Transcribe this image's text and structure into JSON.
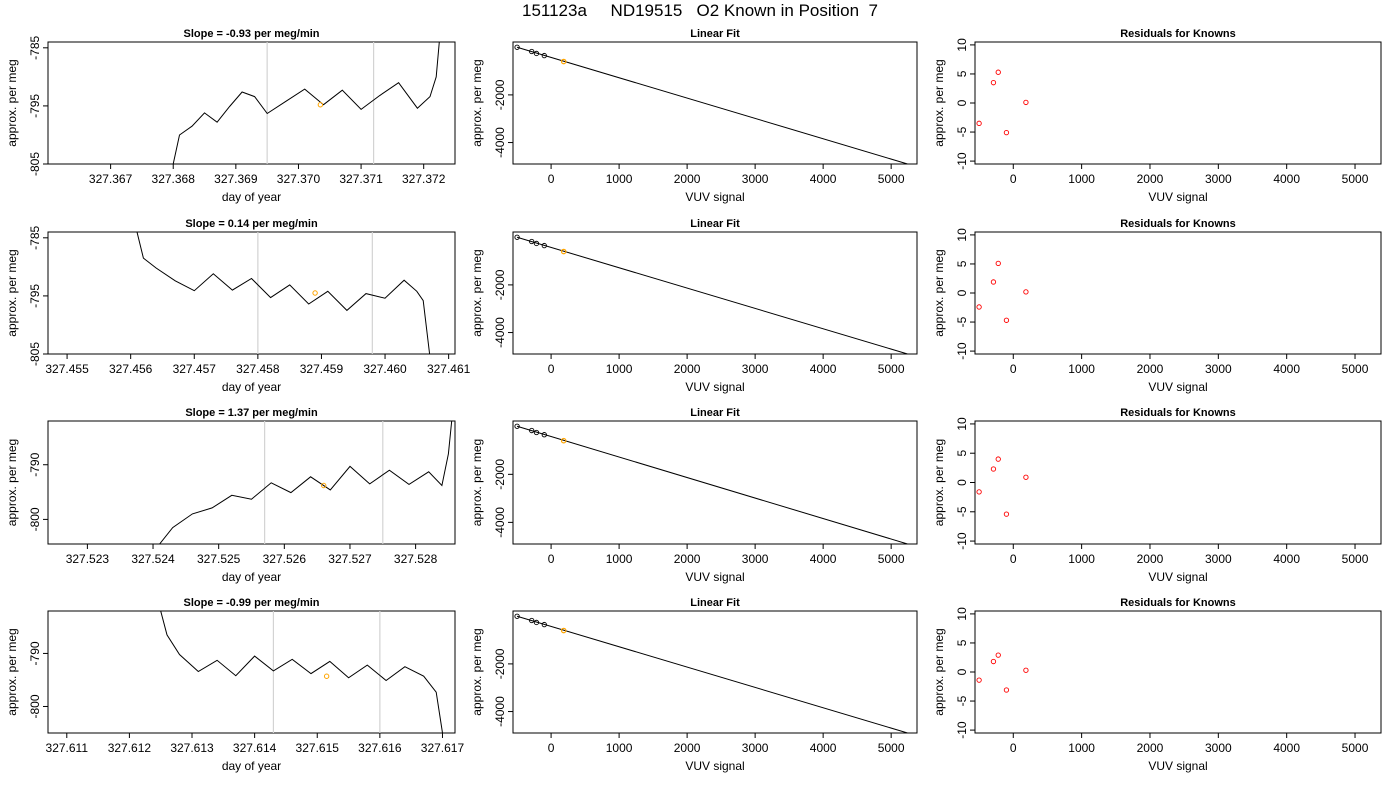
{
  "figure_title": "151123a     ND19515   O2 Known in Position  7",
  "colors": {
    "trace": "#000000",
    "marker_line": "#d3d3d3",
    "highlight_point": "#ffa500",
    "residual_point": "#ff0000",
    "axis": "#000000"
  },
  "chart_data": [
    {
      "type": "line",
      "title": "Slope =  -0.93  per meg/min",
      "xlabel": "day of year",
      "ylabel": "approx. per meg",
      "xlim": [
        327.366,
        327.3725
      ],
      "ylim": [
        -805,
        -784
      ],
      "xticks": [
        "327.367",
        "327.368",
        "327.369",
        "327.370",
        "327.371",
        "327.372"
      ],
      "yticks": [
        "-785",
        "-795",
        "-805"
      ],
      "vlines": [
        327.3695,
        327.3712
      ],
      "highlight": {
        "x": 327.37035,
        "y": -794.8
      },
      "series": [
        {
          "values": [
            [
              327.368,
              -805
            ],
            [
              327.3681,
              -800
            ],
            [
              327.3683,
              -798.5
            ],
            [
              327.3685,
              -796.2
            ],
            [
              327.3687,
              -797.8
            ],
            [
              327.3689,
              -795.1
            ],
            [
              327.3691,
              -792.6
            ],
            [
              327.3693,
              -793.4
            ],
            [
              327.3695,
              -796.3
            ],
            [
              327.3698,
              -794.2
            ],
            [
              327.3701,
              -792.1
            ],
            [
              327.3704,
              -794.8
            ],
            [
              327.3707,
              -792.3
            ],
            [
              327.371,
              -795.6
            ],
            [
              327.3713,
              -793.2
            ],
            [
              327.3716,
              -791.0
            ],
            [
              327.3719,
              -795.4
            ],
            [
              327.3721,
              -793.4
            ],
            [
              327.3722,
              -790.0
            ],
            [
              327.37225,
              -784
            ]
          ]
        }
      ]
    },
    {
      "type": "scatter",
      "title": "Linear Fit",
      "xlabel": "VUV signal",
      "ylabel": "approx. per meg",
      "xlim": [
        -560,
        5380
      ],
      "ylim": [
        -4900,
        220
      ],
      "xticks": [
        "0",
        "1000",
        "2000",
        "3000",
        "4000",
        "5000"
      ],
      "yticks": [
        "-2000",
        "-4000"
      ],
      "fit_line": [
        [
          -500,
          0
        ],
        [
          5300,
          -4950
        ]
      ],
      "points": [
        [
          -500,
          0
        ],
        [
          -285,
          -178
        ],
        [
          -215,
          -260
        ],
        [
          -100,
          -350
        ]
      ],
      "highlight": {
        "x": 185,
        "y": -600
      }
    },
    {
      "type": "scatter",
      "title": "Residuals for Knowns",
      "xlabel": "VUV signal",
      "ylabel": "approx. per meg",
      "xlim": [
        -560,
        5380
      ],
      "ylim": [
        -10.5,
        10.5
      ],
      "xticks": [
        "0",
        "1000",
        "2000",
        "3000",
        "4000",
        "5000"
      ],
      "yticks": [
        "10",
        "5",
        "0",
        "-5",
        "-10"
      ],
      "points": [
        [
          -500,
          -3.5
        ],
        [
          -290,
          3.5
        ],
        [
          -220,
          5.3
        ],
        [
          -100,
          -5.1
        ],
        [
          185,
          0.1
        ]
      ]
    },
    {
      "type": "line",
      "title": "Slope =  0.14  per meg/min",
      "xlabel": "day of year",
      "ylabel": "approx. per meg",
      "xlim": [
        327.4547,
        327.4611
      ],
      "ylim": [
        -805,
        -784
      ],
      "xticks": [
        "327.455",
        "327.456",
        "327.457",
        "327.458",
        "327.459",
        "327.460",
        "327.461"
      ],
      "yticks": [
        "-785",
        "-795",
        "-805"
      ],
      "vlines": [
        327.458,
        327.4598
      ],
      "highlight": {
        "x": 327.4589,
        "y": -794.5
      },
      "series": [
        {
          "values": [
            [
              327.4561,
              -784
            ],
            [
              327.4562,
              -788.5
            ],
            [
              327.4564,
              -790.2
            ],
            [
              327.4567,
              -792.4
            ],
            [
              327.457,
              -794.1
            ],
            [
              327.4573,
              -791.2
            ],
            [
              327.4576,
              -794.0
            ],
            [
              327.4579,
              -792.0
            ],
            [
              327.4582,
              -795.3
            ],
            [
              327.4585,
              -793.1
            ],
            [
              327.4588,
              -796.4
            ],
            [
              327.4591,
              -794.2
            ],
            [
              327.4594,
              -797.5
            ],
            [
              327.4597,
              -794.6
            ],
            [
              327.46,
              -795.4
            ],
            [
              327.4603,
              -792.3
            ],
            [
              327.4605,
              -794.2
            ],
            [
              327.4606,
              -795.8
            ],
            [
              327.4607,
              -805
            ]
          ]
        }
      ]
    },
    {
      "type": "scatter",
      "title": "Linear Fit",
      "xlabel": "VUV signal",
      "ylabel": "approx. per meg",
      "xlim": [
        -560,
        5380
      ],
      "ylim": [
        -4900,
        220
      ],
      "xticks": [
        "0",
        "1000",
        "2000",
        "3000",
        "4000",
        "5000"
      ],
      "yticks": [
        "-2000",
        "-4000"
      ],
      "fit_line": [
        [
          -500,
          0
        ],
        [
          5300,
          -4950
        ]
      ],
      "points": [
        [
          -500,
          0
        ],
        [
          -285,
          -178
        ],
        [
          -215,
          -260
        ],
        [
          -100,
          -350
        ]
      ],
      "highlight": {
        "x": 185,
        "y": -600
      }
    },
    {
      "type": "scatter",
      "title": "Residuals for Knowns",
      "xlabel": "VUV signal",
      "ylabel": "approx. per meg",
      "xlim": [
        -560,
        5380
      ],
      "ylim": [
        -10.5,
        10.5
      ],
      "xticks": [
        "0",
        "1000",
        "2000",
        "3000",
        "4000",
        "5000"
      ],
      "yticks": [
        "10",
        "5",
        "0",
        "-5",
        "-10"
      ],
      "points": [
        [
          -500,
          -2.4
        ],
        [
          -290,
          1.9
        ],
        [
          -220,
          5.1
        ],
        [
          -100,
          -4.7
        ],
        [
          185,
          0.2
        ]
      ]
    },
    {
      "type": "line",
      "title": "Slope =  1.37  per meg/min",
      "xlabel": "day of year",
      "ylabel": "approx. per meg",
      "xlim": [
        327.5224,
        327.5286
      ],
      "ylim": [
        -804.5,
        -782
      ],
      "xticks": [
        "327.523",
        "327.524",
        "327.525",
        "327.526",
        "327.527",
        "327.528"
      ],
      "yticks": [
        "-790",
        "-800"
      ],
      "vlines": [
        327.5257,
        327.5275
      ],
      "highlight": {
        "x": 327.5266,
        "y": -793.8
      },
      "series": [
        {
          "values": [
            [
              327.5241,
              -804.5
            ],
            [
              327.5243,
              -801.5
            ],
            [
              327.5246,
              -799.0
            ],
            [
              327.5249,
              -797.9
            ],
            [
              327.5252,
              -795.6
            ],
            [
              327.5255,
              -796.3
            ],
            [
              327.5258,
              -793.3
            ],
            [
              327.5261,
              -795.1
            ],
            [
              327.5264,
              -792.2
            ],
            [
              327.5267,
              -794.6
            ],
            [
              327.527,
              -790.3
            ],
            [
              327.5273,
              -793.5
            ],
            [
              327.5276,
              -791.0
            ],
            [
              327.5279,
              -793.6
            ],
            [
              327.5282,
              -791.3
            ],
            [
              327.5284,
              -793.8
            ],
            [
              327.5285,
              -788.0
            ],
            [
              327.52855,
              -782
            ]
          ]
        }
      ]
    },
    {
      "type": "scatter",
      "title": "Linear Fit",
      "xlabel": "VUV signal",
      "ylabel": "approx. per meg",
      "xlim": [
        -560,
        5380
      ],
      "ylim": [
        -4900,
        220
      ],
      "xticks": [
        "0",
        "1000",
        "2000",
        "3000",
        "4000",
        "5000"
      ],
      "yticks": [
        "-2000",
        "-4000"
      ],
      "fit_line": [
        [
          -500,
          0
        ],
        [
          5300,
          -4950
        ]
      ],
      "points": [
        [
          -500,
          0
        ],
        [
          -285,
          -178
        ],
        [
          -215,
          -260
        ],
        [
          -100,
          -350
        ]
      ],
      "highlight": {
        "x": 185,
        "y": -600
      }
    },
    {
      "type": "scatter",
      "title": "Residuals for Knowns",
      "xlabel": "VUV signal",
      "ylabel": "approx. per meg",
      "xlim": [
        -560,
        5380
      ],
      "ylim": [
        -10.5,
        10.5
      ],
      "xticks": [
        "0",
        "1000",
        "2000",
        "3000",
        "4000",
        "5000"
      ],
      "yticks": [
        "10",
        "5",
        "0",
        "-5",
        "-10"
      ],
      "points": [
        [
          -500,
          -1.6
        ],
        [
          -290,
          2.3
        ],
        [
          -220,
          4.0
        ],
        [
          -100,
          -5.4
        ],
        [
          185,
          0.9
        ]
      ]
    },
    {
      "type": "line",
      "title": "Slope =  -0.99  per meg/min",
      "xlabel": "day of year",
      "ylabel": "approx. per meg",
      "xlim": [
        327.6107,
        327.6172
      ],
      "ylim": [
        -805,
        -782
      ],
      "xticks": [
        "327.611",
        "327.612",
        "327.613",
        "327.614",
        "327.615",
        "327.616",
        "327.617"
      ],
      "yticks": [
        "-790",
        "-800"
      ],
      "vlines": [
        327.6143,
        327.616
      ],
      "highlight": {
        "x": 327.61515,
        "y": -794.3
      },
      "series": [
        {
          "values": [
            [
              327.6125,
              -782
            ],
            [
              327.6126,
              -786.5
            ],
            [
              327.6128,
              -790.2
            ],
            [
              327.6131,
              -793.4
            ],
            [
              327.6134,
              -791.3
            ],
            [
              327.6137,
              -794.2
            ],
            [
              327.614,
              -790.5
            ],
            [
              327.6143,
              -793.3
            ],
            [
              327.6146,
              -791.1
            ],
            [
              327.6149,
              -793.8
            ],
            [
              327.6152,
              -791.5
            ],
            [
              327.6155,
              -794.6
            ],
            [
              327.6158,
              -792.2
            ],
            [
              327.6161,
              -795.1
            ],
            [
              327.6164,
              -792.5
            ],
            [
              327.6167,
              -794.3
            ],
            [
              327.6169,
              -797.3
            ],
            [
              327.617,
              -805
            ]
          ]
        }
      ]
    },
    {
      "type": "scatter",
      "title": "Linear Fit",
      "xlabel": "VUV signal",
      "ylabel": "approx. per meg",
      "xlim": [
        -560,
        5380
      ],
      "ylim": [
        -4900,
        220
      ],
      "xticks": [
        "0",
        "1000",
        "2000",
        "3000",
        "4000",
        "5000"
      ],
      "yticks": [
        "-2000",
        "-4000"
      ],
      "fit_line": [
        [
          -500,
          0
        ],
        [
          5300,
          -4950
        ]
      ],
      "points": [
        [
          -500,
          0
        ],
        [
          -285,
          -178
        ],
        [
          -215,
          -260
        ],
        [
          -100,
          -350
        ]
      ],
      "highlight": {
        "x": 185,
        "y": -600
      }
    },
    {
      "type": "scatter",
      "title": "Residuals for Knowns",
      "xlabel": "VUV signal",
      "ylabel": "approx. per meg",
      "xlim": [
        -560,
        5380
      ],
      "ylim": [
        -10.5,
        10.5
      ],
      "xticks": [
        "0",
        "1000",
        "2000",
        "3000",
        "4000",
        "5000"
      ],
      "yticks": [
        "10",
        "5",
        "0",
        "-5",
        "-10"
      ],
      "points": [
        [
          -500,
          -1.4
        ],
        [
          -290,
          1.8
        ],
        [
          -220,
          2.9
        ],
        [
          -100,
          -3.1
        ],
        [
          185,
          0.3
        ]
      ]
    }
  ]
}
